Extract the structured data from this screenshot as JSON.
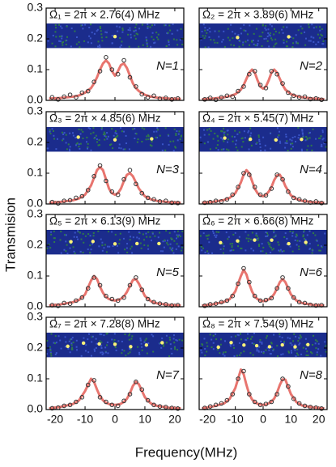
{
  "chart_data": {
    "type": "panel-grid",
    "x_label": "Frequency(MHz)",
    "y_label": "Transmision",
    "xlim": [
      -23,
      23
    ],
    "ylim": [
      0,
      0.3
    ],
    "xticks": [
      -20,
      -10,
      0,
      10,
      20
    ],
    "yticks": [
      {
        "value": 0,
        "label": "0.0"
      },
      0.1,
      0.2,
      0.3
    ],
    "point_color": "#333333",
    "fit_color": "#e8756f",
    "panels": [
      {
        "type": "scatter-fit",
        "title": "Ω₁ = 2π × 2.76(4) MHz",
        "annotation": "N=1",
        "x": [
          -21,
          -19,
          -17,
          -15,
          -13,
          -11,
          -9,
          -7,
          -5,
          -3,
          -1,
          1,
          3,
          5,
          7,
          9,
          11,
          13,
          15,
          17,
          19,
          21
        ],
        "values": [
          0.01,
          0.003,
          0.012,
          0.018,
          0.01,
          0.025,
          0.03,
          0.06,
          0.095,
          0.14,
          0.1,
          0.085,
          0.13,
          0.075,
          0.045,
          0.02,
          0.01,
          0.015,
          0.005,
          0.008,
          0.003,
          0.006
        ],
        "fit": {
          "x": [
            -22,
            -18,
            -14,
            -12,
            -10,
            -8,
            -7,
            -6,
            -5,
            -4,
            -3,
            -2,
            -1,
            0,
            1,
            2,
            3,
            4,
            5,
            6,
            7,
            8,
            10,
            12,
            14,
            18,
            22
          ],
          "values": [
            0.006,
            0.008,
            0.012,
            0.016,
            0.025,
            0.04,
            0.055,
            0.075,
            0.1,
            0.12,
            0.13,
            0.12,
            0.095,
            0.08,
            0.095,
            0.115,
            0.12,
            0.105,
            0.08,
            0.055,
            0.04,
            0.03,
            0.018,
            0.012,
            0.009,
            0.006,
            0.005
          ]
        }
      },
      {
        "type": "scatter-fit",
        "title": "Ω₂ = 2π × 3.89(6) MHz",
        "annotation": "N=2",
        "x": [
          -21,
          -19,
          -17,
          -15,
          -13,
          -11,
          -9,
          -7,
          -5,
          -3,
          -1,
          1,
          3,
          5,
          7,
          9,
          11,
          13,
          15,
          17,
          19,
          21
        ],
        "values": [
          0.003,
          0.008,
          0.002,
          0.01,
          0.015,
          0.012,
          0.03,
          0.045,
          0.085,
          0.095,
          0.05,
          0.04,
          0.095,
          0.085,
          0.055,
          0.025,
          0.015,
          0.01,
          0.012,
          0.004,
          0.006,
          0.002
        ],
        "fit": {
          "x": [
            -22,
            -18,
            -14,
            -12,
            -10,
            -8,
            -7,
            -6,
            -5,
            -4,
            -3,
            -2,
            -1,
            0,
            1,
            2,
            3,
            4,
            5,
            6,
            7,
            8,
            10,
            12,
            14,
            18,
            22
          ],
          "values": [
            0.004,
            0.006,
            0.01,
            0.014,
            0.02,
            0.035,
            0.05,
            0.07,
            0.09,
            0.1,
            0.09,
            0.065,
            0.045,
            0.038,
            0.045,
            0.065,
            0.09,
            0.1,
            0.09,
            0.07,
            0.05,
            0.035,
            0.02,
            0.014,
            0.01,
            0.006,
            0.004
          ]
        }
      },
      {
        "type": "scatter-fit",
        "title": "Ω₃ = 2π × 4.85(6) MHz",
        "annotation": "N=3",
        "x": [
          -21,
          -19,
          -17,
          -15,
          -13,
          -11,
          -9,
          -7,
          -5,
          -3,
          -1,
          1,
          3,
          5,
          7,
          9,
          11,
          13,
          15,
          17,
          19,
          21
        ],
        "values": [
          0.006,
          0.002,
          0.01,
          0.012,
          0.02,
          0.025,
          0.045,
          0.09,
          0.125,
          0.075,
          0.04,
          0.03,
          0.08,
          0.11,
          0.065,
          0.035,
          0.02,
          0.015,
          0.008,
          0.01,
          0.004,
          0.003
        ],
        "fit": {
          "x": [
            -22,
            -18,
            -14,
            -12,
            -10,
            -8,
            -7,
            -6,
            -5,
            -4,
            -3,
            -2,
            -1,
            0,
            1,
            2,
            3,
            4,
            5,
            6,
            7,
            8,
            10,
            12,
            14,
            18,
            22
          ],
          "values": [
            0.004,
            0.007,
            0.012,
            0.018,
            0.03,
            0.06,
            0.085,
            0.11,
            0.12,
            0.11,
            0.08,
            0.05,
            0.035,
            0.03,
            0.035,
            0.05,
            0.075,
            0.095,
            0.1,
            0.09,
            0.07,
            0.05,
            0.025,
            0.015,
            0.01,
            0.006,
            0.004
          ]
        }
      },
      {
        "type": "scatter-fit",
        "title": "Ω₄ = 2π × 5.45(7) MHz",
        "annotation": "N=4",
        "x": [
          -21,
          -19,
          -17,
          -15,
          -13,
          -11,
          -9,
          -7,
          -5,
          -3,
          -1,
          1,
          3,
          5,
          7,
          9,
          11,
          13,
          15,
          17,
          19,
          21
        ],
        "values": [
          0.004,
          0.006,
          0.01,
          0.008,
          0.015,
          0.03,
          0.055,
          0.1,
          0.095,
          0.055,
          0.03,
          0.028,
          0.05,
          0.095,
          0.08,
          0.04,
          0.02,
          0.015,
          0.01,
          0.005,
          0.008,
          0.003
        ],
        "fit": {
          "x": [
            -22,
            -18,
            -14,
            -12,
            -10,
            -8,
            -7,
            -6,
            -5,
            -4,
            -3,
            -2,
            -1,
            0,
            1,
            2,
            3,
            4,
            5,
            6,
            7,
            8,
            10,
            12,
            14,
            18,
            22
          ],
          "values": [
            0.004,
            0.007,
            0.013,
            0.02,
            0.035,
            0.07,
            0.095,
            0.11,
            0.1,
            0.075,
            0.05,
            0.035,
            0.027,
            0.025,
            0.03,
            0.04,
            0.055,
            0.078,
            0.093,
            0.095,
            0.08,
            0.058,
            0.028,
            0.016,
            0.01,
            0.006,
            0.004
          ]
        }
      },
      {
        "type": "scatter-fit",
        "title": "Ω₅ = 2π × 6.13(9) MHz",
        "annotation": "N=5",
        "x": [
          -21,
          -19,
          -17,
          -15,
          -13,
          -11,
          -9,
          -7,
          -5,
          -3,
          -1,
          1,
          3,
          5,
          7,
          9,
          11,
          13,
          15,
          17,
          19,
          21
        ],
        "values": [
          0.005,
          0.003,
          0.012,
          0.01,
          0.02,
          0.03,
          0.06,
          0.095,
          0.07,
          0.035,
          0.025,
          0.02,
          0.03,
          0.07,
          0.095,
          0.055,
          0.025,
          0.015,
          0.01,
          0.008,
          0.004,
          0.005
        ],
        "fit": {
          "x": [
            -22,
            -18,
            -14,
            -12,
            -10,
            -8,
            -7,
            -6,
            -5,
            -4,
            -3,
            -2,
            -1,
            0,
            1,
            2,
            3,
            4,
            5,
            6,
            7,
            8,
            10,
            12,
            14,
            18,
            22
          ],
          "values": [
            0.004,
            0.008,
            0.015,
            0.022,
            0.04,
            0.085,
            0.1,
            0.09,
            0.065,
            0.045,
            0.032,
            0.025,
            0.022,
            0.02,
            0.022,
            0.026,
            0.034,
            0.048,
            0.068,
            0.087,
            0.09,
            0.075,
            0.035,
            0.018,
            0.011,
            0.006,
            0.004
          ]
        }
      },
      {
        "type": "scatter-fit",
        "title": "Ω₆ = 2π × 6.66(8) MHz",
        "annotation": "N=6",
        "x": [
          -21,
          -19,
          -17,
          -15,
          -13,
          -11,
          -9,
          -7,
          -5,
          -3,
          -1,
          1,
          3,
          5,
          7,
          9,
          11,
          13,
          15,
          17,
          19,
          21
        ],
        "values": [
          0.003,
          0.008,
          0.01,
          0.015,
          0.02,
          0.035,
          0.075,
          0.125,
          0.08,
          0.035,
          0.02,
          0.022,
          0.028,
          0.06,
          0.095,
          0.06,
          0.03,
          0.015,
          0.012,
          0.006,
          0.004,
          0.005
        ],
        "fit": {
          "x": [
            -22,
            -18,
            -14,
            -12,
            -10,
            -8,
            -7,
            -6,
            -5,
            -4,
            -3,
            -2,
            -1,
            0,
            1,
            2,
            3,
            4,
            5,
            6,
            7,
            8,
            10,
            12,
            14,
            18,
            22
          ],
          "values": [
            0.004,
            0.008,
            0.016,
            0.025,
            0.05,
            0.1,
            0.12,
            0.105,
            0.075,
            0.05,
            0.033,
            0.025,
            0.02,
            0.018,
            0.02,
            0.024,
            0.03,
            0.042,
            0.06,
            0.08,
            0.09,
            0.08,
            0.04,
            0.02,
            0.012,
            0.006,
            0.004
          ]
        }
      },
      {
        "type": "scatter-fit",
        "title": "Ω₇ = 2π × 7.28(8) MHz",
        "annotation": "N=7",
        "x": [
          -21,
          -19,
          -17,
          -15,
          -13,
          -11,
          -9,
          -7,
          -5,
          -3,
          -1,
          1,
          3,
          5,
          7,
          9,
          11,
          13,
          15,
          17,
          19,
          21
        ],
        "values": [
          0.004,
          0.006,
          0.012,
          0.015,
          0.025,
          0.04,
          0.08,
          0.095,
          0.04,
          0.025,
          0.015,
          0.012,
          0.028,
          0.05,
          0.09,
          0.065,
          0.03,
          0.015,
          0.01,
          0.008,
          0.005,
          0.003
        ],
        "fit": {
          "x": [
            -22,
            -18,
            -14,
            -12,
            -10,
            -8,
            -7,
            -6,
            -5,
            -4,
            -3,
            -2,
            -1,
            0,
            1,
            2,
            3,
            4,
            5,
            6,
            7,
            8,
            10,
            12,
            14,
            18,
            22
          ],
          "values": [
            0.004,
            0.009,
            0.018,
            0.03,
            0.06,
            0.1,
            0.09,
            0.065,
            0.043,
            0.03,
            0.022,
            0.018,
            0.016,
            0.015,
            0.016,
            0.019,
            0.025,
            0.035,
            0.053,
            0.077,
            0.09,
            0.082,
            0.04,
            0.02,
            0.012,
            0.006,
            0.004
          ]
        }
      },
      {
        "type": "scatter-fit",
        "title": "Ω₈ = 2π × 7.54(9) MHz",
        "annotation": "N=8",
        "x": [
          -21,
          -19,
          -17,
          -15,
          -13,
          -11,
          -9,
          -7,
          -5,
          -3,
          -1,
          1,
          3,
          5,
          7,
          9,
          11,
          13,
          15,
          17,
          19,
          21
        ],
        "values": [
          0.005,
          0.01,
          0.015,
          0.02,
          0.03,
          0.05,
          0.1,
          0.125,
          0.05,
          0.025,
          0.015,
          0.018,
          0.025,
          0.05,
          0.1,
          0.075,
          0.035,
          0.02,
          0.012,
          0.008,
          0.006,
          0.003
        ],
        "fit": {
          "x": [
            -22,
            -18,
            -14,
            -12,
            -10,
            -8,
            -7,
            -6,
            -5,
            -4,
            -3,
            -2,
            -1,
            0,
            1,
            2,
            3,
            4,
            5,
            6,
            7,
            8,
            10,
            12,
            14,
            18,
            22
          ],
          "values": [
            0.004,
            0.01,
            0.02,
            0.035,
            0.07,
            0.13,
            0.115,
            0.08,
            0.05,
            0.033,
            0.024,
            0.019,
            0.016,
            0.015,
            0.016,
            0.02,
            0.026,
            0.036,
            0.055,
            0.08,
            0.098,
            0.097,
            0.05,
            0.024,
            0.013,
            0.007,
            0.004
          ]
        }
      }
    ]
  }
}
